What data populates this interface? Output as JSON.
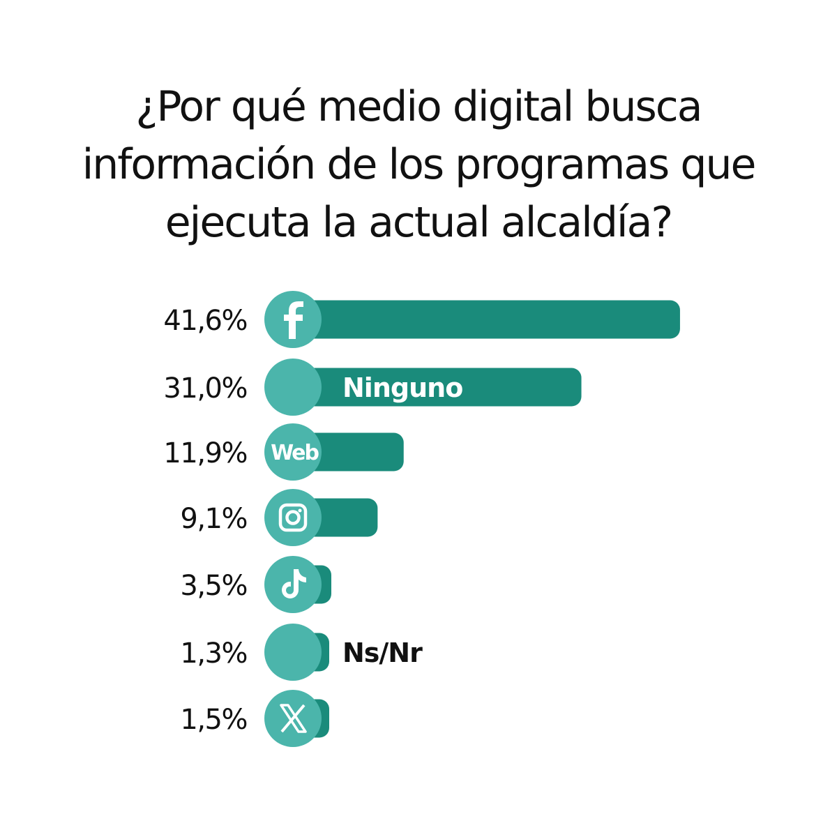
{
  "chart_data": {
    "type": "bar",
    "orientation": "horizontal",
    "title": "¿Por qué medio digital busca información de los programas que ejecuta la actual alcaldía?",
    "title_lines": [
      "¿Por qué medio digital busca",
      "información de los programas que",
      "ejecuta la actual alcaldía?"
    ],
    "categories": [
      "Facebook",
      "Ninguno",
      "Web",
      "Instagram",
      "TikTok",
      "Ns/Nr",
      "X"
    ],
    "values": [
      41.6,
      31.0,
      11.9,
      9.1,
      3.5,
      1.3,
      1.5
    ],
    "value_labels": [
      "41,6%",
      "31,0%",
      "11,9%",
      "9,1%",
      "3,5%",
      "1,3%",
      "1,5%"
    ],
    "icons": [
      "facebook-icon",
      "none",
      "web-text",
      "instagram-icon",
      "tiktok-icon",
      "none",
      "x-icon"
    ],
    "text_labels": {
      "Ninguno": "Ninguno",
      "Web": "Web",
      "Ns/Nr": "Ns/Nr"
    },
    "unit": "%",
    "xlim": [
      0,
      42
    ],
    "colors": {
      "bar": "#1a8b7b",
      "circle": "#4bb5ab",
      "text": "#111111"
    }
  }
}
